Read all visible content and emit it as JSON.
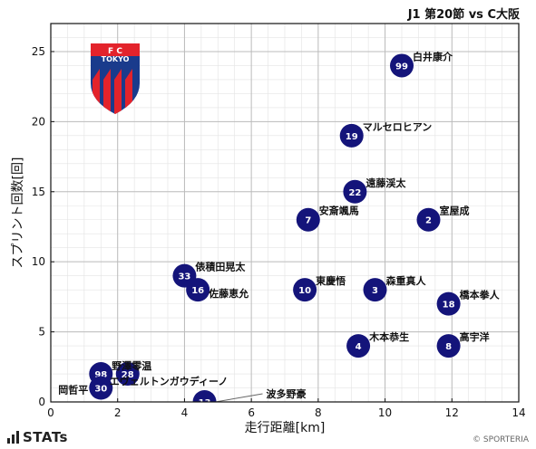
{
  "header": {
    "title": "J1 第20節 vs C大阪"
  },
  "footer": {
    "brand": "STATs",
    "copyright": "© SPORTERIA"
  },
  "logo": {
    "top_text": "F  C",
    "name": "TOKYO",
    "colors": {
      "blue": "#1a3b8c",
      "red": "#e3232b"
    }
  },
  "colors": {
    "point": "#14147a",
    "grid": "#bbbbbb",
    "minor_grid": "#e3e3e3"
  },
  "chart_data": {
    "type": "scatter",
    "title": "J1 第20節 vs C大阪",
    "xlabel": "走行距離[km]",
    "ylabel": "スプリント回数[回]",
    "xlim": [
      0,
      14
    ],
    "ylim": [
      0,
      27
    ],
    "xticks": [
      0,
      2,
      4,
      6,
      8,
      10,
      12,
      14
    ],
    "yticks": [
      0,
      5,
      10,
      15,
      20,
      25
    ],
    "grid": true,
    "points": [
      {
        "num": "99",
        "name": "白井康介",
        "x": 10.5,
        "y": 24
      },
      {
        "num": "19",
        "name": "マルセロヒアン",
        "x": 9.0,
        "y": 19
      },
      {
        "num": "22",
        "name": "遠藤渓太",
        "x": 9.1,
        "y": 15
      },
      {
        "num": "7",
        "name": "安斎颯馬",
        "x": 7.7,
        "y": 13
      },
      {
        "num": "2",
        "name": "室屋成",
        "x": 11.3,
        "y": 13
      },
      {
        "num": "33",
        "name": "俵積田晃太",
        "x": 4.0,
        "y": 9
      },
      {
        "num": "16",
        "name": "佐藤恵允",
        "x": 4.4,
        "y": 8
      },
      {
        "num": "10",
        "name": "東慶悟",
        "x": 7.6,
        "y": 8
      },
      {
        "num": "3",
        "name": "森重真人",
        "x": 9.7,
        "y": 8
      },
      {
        "num": "18",
        "name": "橋本拳人",
        "x": 11.9,
        "y": 7
      },
      {
        "num": "4",
        "name": "木本恭生",
        "x": 9.2,
        "y": 4
      },
      {
        "num": "8",
        "name": "高宇洋",
        "x": 11.9,
        "y": 4
      },
      {
        "num": "98",
        "name": "野澤零温",
        "x": 1.5,
        "y": 2
      },
      {
        "num": "28",
        "name": "エヴェルトンガウディーノ",
        "x": 2.3,
        "y": 2
      },
      {
        "num": "30",
        "name": "岡哲平",
        "x": 1.5,
        "y": 1
      },
      {
        "num": "13",
        "name": "波多野豪",
        "x": 4.6,
        "y": 0
      }
    ]
  }
}
